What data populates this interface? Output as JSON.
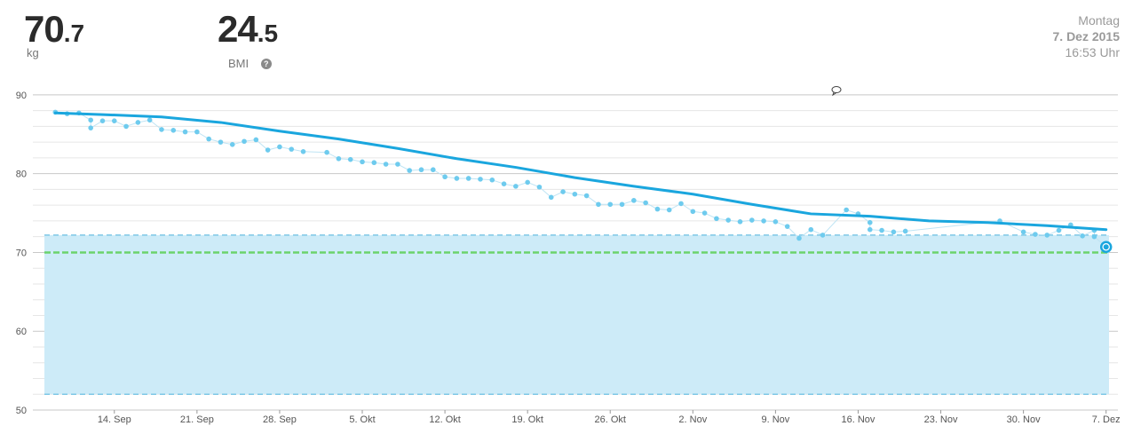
{
  "header": {
    "weight_int": "70",
    "weight_dec": ".7",
    "weight_unit": "kg",
    "bmi_int": "24",
    "bmi_dec": ".5",
    "bmi_label": "BMI",
    "help_symbol": "?",
    "weekday": "Montag",
    "date": "7. Dez 2015",
    "time": "16:53 Uhr"
  },
  "colors": {
    "trend": "#1aa6de",
    "points": "#6ecbee",
    "band_fill": "#cdebf8",
    "band_edge": "#7ec8e6",
    "goal": "#6cd36c",
    "grid": "#d8d8d8"
  },
  "chart_data": {
    "type": "line",
    "x_start": "2015-09-09",
    "x_end": "2015-12-07",
    "xlim": [
      "2015-09-08",
      "2015-12-08"
    ],
    "ylim": [
      50,
      91
    ],
    "y_ticks": [
      50,
      60,
      70,
      80,
      90
    ],
    "x_ticks": [
      {
        "date": "2015-09-14",
        "label": "14. Sep"
      },
      {
        "date": "2015-09-21",
        "label": "21. Sep"
      },
      {
        "date": "2015-09-28",
        "label": "28. Sep"
      },
      {
        "date": "2015-10-05",
        "label": "5. Okt"
      },
      {
        "date": "2015-10-12",
        "label": "12. Okt"
      },
      {
        "date": "2015-10-19",
        "label": "19. Okt"
      },
      {
        "date": "2015-10-26",
        "label": "26. Okt"
      },
      {
        "date": "2015-11-02",
        "label": "2. Nov"
      },
      {
        "date": "2015-11-09",
        "label": "9. Nov"
      },
      {
        "date": "2015-11-16",
        "label": "16. Nov"
      },
      {
        "date": "2015-11-23",
        "label": "23. Nov"
      },
      {
        "date": "2015-11-30",
        "label": "30. Nov"
      },
      {
        "date": "2015-12-07",
        "label": "7. Dez"
      }
    ],
    "healthy_band": [
      52,
      72.2
    ],
    "goal_weight": 70,
    "grid": true,
    "series": [
      {
        "kind": "measurements",
        "points": [
          [
            "2015-09-09",
            87.8
          ],
          [
            "2015-09-10",
            87.6
          ],
          [
            "2015-09-11",
            87.7
          ],
          [
            "2015-09-12",
            86.8
          ],
          [
            "2015-09-12",
            85.8
          ],
          [
            "2015-09-13",
            86.7
          ],
          [
            "2015-09-14",
            86.7
          ],
          [
            "2015-09-15",
            86.0
          ],
          [
            "2015-09-16",
            86.5
          ],
          [
            "2015-09-17",
            86.8
          ],
          [
            "2015-09-18",
            85.6
          ],
          [
            "2015-09-19",
            85.5
          ],
          [
            "2015-09-20",
            85.3
          ],
          [
            "2015-09-21",
            85.3
          ],
          [
            "2015-09-22",
            84.4
          ],
          [
            "2015-09-23",
            84.0
          ],
          [
            "2015-09-24",
            83.7
          ],
          [
            "2015-09-25",
            84.1
          ],
          [
            "2015-09-26",
            84.3
          ],
          [
            "2015-09-27",
            83.0
          ],
          [
            "2015-09-28",
            83.4
          ],
          [
            "2015-09-29",
            83.1
          ],
          [
            "2015-09-30",
            82.8
          ],
          [
            "2015-10-02",
            82.7
          ],
          [
            "2015-10-03",
            81.9
          ],
          [
            "2015-10-04",
            81.8
          ],
          [
            "2015-10-05",
            81.5
          ],
          [
            "2015-10-06",
            81.4
          ],
          [
            "2015-10-07",
            81.2
          ],
          [
            "2015-10-08",
            81.2
          ],
          [
            "2015-10-09",
            80.4
          ],
          [
            "2015-10-10",
            80.5
          ],
          [
            "2015-10-11",
            80.5
          ],
          [
            "2015-10-12",
            79.6
          ],
          [
            "2015-10-13",
            79.4
          ],
          [
            "2015-10-14",
            79.4
          ],
          [
            "2015-10-15",
            79.3
          ],
          [
            "2015-10-16",
            79.2
          ],
          [
            "2015-10-17",
            78.7
          ],
          [
            "2015-10-18",
            78.4
          ],
          [
            "2015-10-19",
            78.9
          ],
          [
            "2015-10-20",
            78.3
          ],
          [
            "2015-10-21",
            77.0
          ],
          [
            "2015-10-22",
            77.7
          ],
          [
            "2015-10-23",
            77.4
          ],
          [
            "2015-10-24",
            77.2
          ],
          [
            "2015-10-25",
            76.1
          ],
          [
            "2015-10-26",
            76.1
          ],
          [
            "2015-10-27",
            76.1
          ],
          [
            "2015-10-28",
            76.6
          ],
          [
            "2015-10-29",
            76.3
          ],
          [
            "2015-10-30",
            75.5
          ],
          [
            "2015-10-31",
            75.4
          ],
          [
            "2015-11-01",
            76.2
          ],
          [
            "2015-11-02",
            75.2
          ],
          [
            "2015-11-03",
            75.0
          ],
          [
            "2015-11-04",
            74.3
          ],
          [
            "2015-11-05",
            74.1
          ],
          [
            "2015-11-06",
            73.9
          ],
          [
            "2015-11-07",
            74.1
          ],
          [
            "2015-11-08",
            74.0
          ],
          [
            "2015-11-09",
            73.9
          ],
          [
            "2015-11-10",
            73.3
          ],
          [
            "2015-11-11",
            71.8
          ],
          [
            "2015-11-12",
            72.9
          ],
          [
            "2015-11-13",
            72.2
          ],
          [
            "2015-11-15",
            75.4
          ],
          [
            "2015-11-16",
            74.9
          ],
          [
            "2015-11-17",
            73.8
          ],
          [
            "2015-11-17",
            72.9
          ],
          [
            "2015-11-18",
            72.8
          ],
          [
            "2015-11-19",
            72.6
          ],
          [
            "2015-11-20",
            72.7
          ],
          [
            "2015-11-28",
            74.0
          ],
          [
            "2015-11-30",
            72.6
          ],
          [
            "2015-12-01",
            72.3
          ],
          [
            "2015-12-02",
            72.2
          ],
          [
            "2015-12-03",
            72.8
          ],
          [
            "2015-12-04",
            73.5
          ],
          [
            "2015-12-05",
            72.1
          ],
          [
            "2015-12-06",
            72.8
          ],
          [
            "2015-12-06",
            72.0
          ],
          [
            "2015-12-07",
            70.7
          ]
        ]
      },
      {
        "kind": "trend",
        "points": [
          [
            "2015-09-09",
            87.7
          ],
          [
            "2015-09-13",
            87.5
          ],
          [
            "2015-09-18",
            87.2
          ],
          [
            "2015-09-23",
            86.5
          ],
          [
            "2015-09-28",
            85.4
          ],
          [
            "2015-10-03",
            84.4
          ],
          [
            "2015-10-08",
            83.2
          ],
          [
            "2015-10-13",
            81.9
          ],
          [
            "2015-10-18",
            80.8
          ],
          [
            "2015-10-23",
            79.5
          ],
          [
            "2015-10-28",
            78.4
          ],
          [
            "2015-11-02",
            77.4
          ],
          [
            "2015-11-07",
            76.1
          ],
          [
            "2015-11-12",
            74.9
          ],
          [
            "2015-11-17",
            74.6
          ],
          [
            "2015-11-22",
            74.0
          ],
          [
            "2015-11-27",
            73.8
          ],
          [
            "2015-12-02",
            73.4
          ],
          [
            "2015-12-07",
            72.9
          ]
        ]
      }
    ],
    "current_point": [
      "2015-12-07",
      70.7
    ]
  }
}
